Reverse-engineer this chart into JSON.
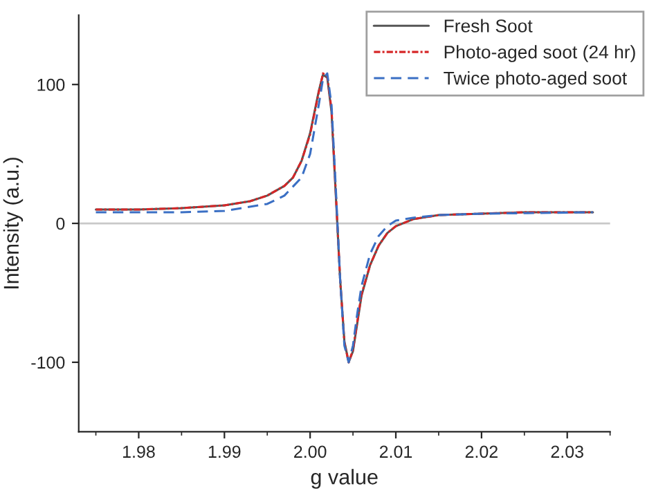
{
  "chart_data": {
    "type": "line",
    "xlabel": "g value",
    "ylabel": "Intensity (a.u.)",
    "xlim": [
      1.973,
      2.035
    ],
    "xticks": [
      {
        "value": 1.98,
        "label": "1.98"
      },
      {
        "value": 1.99,
        "label": "1.99"
      },
      {
        "value": 2.0,
        "label": "2.00"
      },
      {
        "value": 2.01,
        "label": "2.01"
      },
      {
        "value": 2.02,
        "label": "2.02"
      },
      {
        "value": 2.03,
        "label": "2.03"
      }
    ],
    "ylim": [
      -150,
      150
    ],
    "yticks": [
      -100,
      0,
      100
    ],
    "grid": false,
    "legend": "top right",
    "ref_lines": [
      {
        "axis": "y",
        "value": 0,
        "color": "#c8c8c8"
      }
    ],
    "series": [
      {
        "name": "Fresh Soot",
        "color": "#555555",
        "line_style": "solid",
        "x": [
          1.975,
          1.98,
          1.985,
          1.99,
          1.993,
          1.995,
          1.997,
          1.998,
          1.999,
          2.0,
          2.001,
          2.0015,
          2.002,
          2.0025,
          2.003,
          2.0035,
          2.004,
          2.0045,
          2.005,
          2.0055,
          2.006,
          2.007,
          2.008,
          2.009,
          2.01,
          2.012,
          2.015,
          2.02,
          2.025,
          2.033
        ],
        "values": [
          10,
          10,
          11,
          13,
          16,
          20,
          27,
          33,
          45,
          65,
          95,
          107,
          105,
          80,
          20,
          -40,
          -85,
          -100,
          -92,
          -72,
          -52,
          -30,
          -16,
          -7,
          -2,
          3,
          6,
          7,
          8,
          8
        ]
      },
      {
        "name": "Photo-aged soot (24 hr)",
        "color": "#d62728",
        "line_style": "dashdot",
        "x": [
          1.975,
          1.98,
          1.985,
          1.99,
          1.993,
          1.995,
          1.997,
          1.998,
          1.999,
          2.0,
          2.001,
          2.0015,
          2.002,
          2.0025,
          2.003,
          2.0035,
          2.004,
          2.0045,
          2.005,
          2.0055,
          2.006,
          2.007,
          2.008,
          2.009,
          2.01,
          2.012,
          2.015,
          2.02,
          2.025,
          2.033
        ],
        "values": [
          10,
          10,
          11,
          13,
          16,
          20,
          27,
          33,
          45,
          64,
          94,
          108,
          106,
          82,
          22,
          -40,
          -86,
          -100,
          -91,
          -71,
          -51,
          -30,
          -16,
          -7,
          -2,
          3,
          6,
          7,
          8,
          8
        ]
      },
      {
        "name": "Twice photo-aged soot",
        "color": "#3a6fc4",
        "line_style": "dashed",
        "x": [
          1.975,
          1.985,
          1.99,
          1.995,
          1.997,
          1.999,
          2.0,
          2.001,
          2.0015,
          2.002,
          2.0025,
          2.003,
          2.0035,
          2.004,
          2.0045,
          2.005,
          2.0055,
          2.006,
          2.007,
          2.008,
          2.009,
          2.01,
          2.012,
          2.015,
          2.02,
          2.033
        ],
        "values": [
          8,
          8,
          9,
          14,
          20,
          33,
          50,
          85,
          104,
          108,
          85,
          25,
          -40,
          -88,
          -100,
          -88,
          -65,
          -45,
          -22,
          -9,
          -2,
          2,
          4,
          6,
          7,
          8
        ]
      }
    ]
  }
}
